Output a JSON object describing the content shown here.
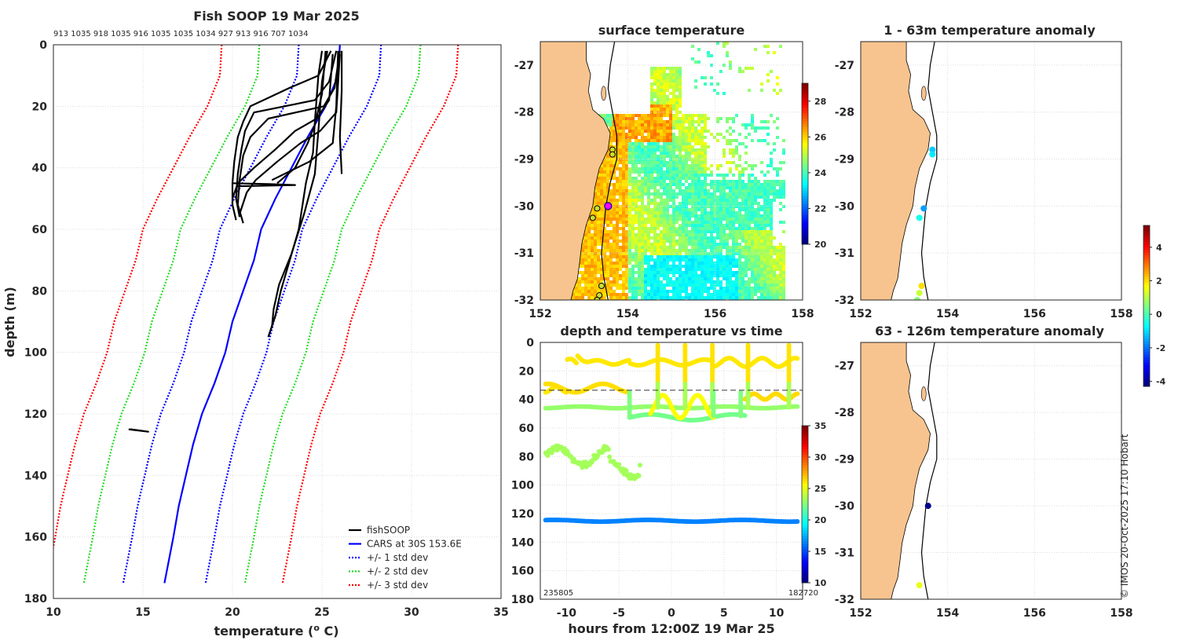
{
  "colors": {
    "coast_fill": "#f7c48f",
    "cars": "#0000ff",
    "sd1": "#0000ff",
    "sd2": "#22dd22",
    "sd3": "#ff0000",
    "fish": "#000000"
  },
  "copyright": "© IMOS 20-Oct-2025 17:10 Hobart",
  "colorbars": {
    "sst": {
      "min": 20,
      "max": 29,
      "ticks": [
        "20",
        "22",
        "24",
        "26",
        "28"
      ]
    },
    "depth_time": {
      "min": 10,
      "max": 35,
      "ticks": [
        "10",
        "15",
        "20",
        "25",
        "30",
        "35"
      ]
    },
    "anomaly": {
      "min": -4.3,
      "max": 5.3,
      "ticks": [
        "-4",
        "-2",
        "0",
        "2",
        "4"
      ]
    }
  },
  "chart_data": [
    {
      "id": "profile",
      "type": "line",
      "title": "Fish SOOP 19 Mar 2025",
      "top_labels": "913 1035 918 1035 916 1035 1035 1034 927 913 916 707 1034",
      "xlabel": "temperature (° C)",
      "ylabel": "depth (m)",
      "xlim": [
        10,
        35
      ],
      "ylim": [
        0,
        180
      ],
      "xticks": [
        "10",
        "15",
        "20",
        "25",
        "30",
        "35"
      ],
      "yticks": [
        "0",
        "20",
        "40",
        "60",
        "80",
        "100",
        "120",
        "140",
        "160",
        "180"
      ],
      "legend": [
        "fishSOOP",
        "CARS at 30S 153.6E",
        "+/- 1 std dev",
        "+/- 2 std dev",
        "+/- 3 std dev"
      ],
      "cars": {
        "depth": [
          0,
          10,
          20,
          30,
          40,
          50,
          60,
          70,
          80,
          90,
          100,
          110,
          120,
          130,
          140,
          150,
          160,
          175
        ],
        "temp": [
          26.0,
          25.9,
          25.2,
          24.2,
          23.3,
          22.4,
          21.6,
          21.2,
          20.6,
          20.0,
          19.6,
          19.0,
          18.3,
          17.8,
          17.4,
          17.0,
          16.7,
          16.2
        ]
      },
      "sd_offsets": [
        2.3,
        4.5,
        6.6
      ],
      "fish_profiles": [
        {
          "depth": [
            2,
            10,
            14,
            20,
            25,
            30,
            38,
            45,
            52,
            57
          ],
          "temp": [
            25.5,
            24.8,
            23.2,
            21.0,
            20.6,
            20.3,
            20.1,
            20.0,
            20.0,
            20.2
          ]
        },
        {
          "depth": [
            2,
            12,
            18,
            22,
            28,
            34,
            42,
            50,
            56
          ],
          "temp": [
            25.8,
            25.4,
            24.6,
            21.2,
            20.7,
            20.5,
            20.3,
            20.2,
            20.4
          ]
        },
        {
          "depth": [
            2,
            14,
            20,
            24,
            30,
            36,
            44,
            52,
            58
          ],
          "temp": [
            26.0,
            25.7,
            25.1,
            22.0,
            21.0,
            20.6,
            20.4,
            20.3,
            20.6
          ]
        },
        {
          "depth": [
            3,
            18,
            24,
            28,
            34,
            40,
            45,
            50
          ],
          "temp": [
            25.6,
            25.4,
            24.7,
            23.5,
            22.4,
            21.2,
            20.3,
            20.0
          ]
        },
        {
          "depth": [
            3,
            22,
            28,
            32,
            38,
            44,
            48,
            55
          ],
          "temp": [
            26.0,
            25.8,
            24.9,
            23.8,
            22.5,
            21.3,
            20.8,
            20.4
          ]
        },
        {
          "depth": [
            2,
            16,
            26,
            32,
            40,
            45
          ],
          "temp": [
            25.2,
            25.0,
            24.6,
            24.2,
            23.5,
            22.5
          ]
        },
        {
          "depth": [
            45,
            45.3,
            45.6,
            46
          ],
          "temp": [
            20.0,
            22.0,
            23.5,
            20.2
          ]
        },
        {
          "depth": [
            2,
            20,
            32,
            38,
            44
          ],
          "temp": [
            25.9,
            25.8,
            25.6,
            24.3,
            22.2
          ]
        },
        {
          "depth": [
            2,
            10,
            25,
            35,
            45,
            60,
            70,
            80,
            88,
            95
          ],
          "temp": [
            25.0,
            24.8,
            24.6,
            24.5,
            24.1,
            23.7,
            23.2,
            22.7,
            22.4,
            22.0
          ]
        },
        {
          "depth": [
            2,
            12,
            28,
            42,
            55,
            68,
            78,
            86,
            92
          ],
          "temp": [
            25.3,
            25.0,
            24.8,
            24.6,
            24.0,
            23.3,
            22.6,
            22.3,
            22.2
          ]
        },
        {
          "depth": [
            2,
            15,
            30,
            42
          ],
          "temp": [
            26.1,
            26.1,
            26.0,
            26.1
          ]
        },
        {
          "depth": [
            125,
            125.4,
            125.8,
            125.3,
            125.0
          ],
          "temp": [
            14.3,
            14.8,
            15.3,
            14.6,
            14.2
          ]
        }
      ]
    },
    {
      "id": "sst_map",
      "type": "heatmap",
      "title": "surface temperature",
      "xlim": [
        152,
        158
      ],
      "ylim": [
        -32,
        -26.5
      ],
      "xticks": [
        "152",
        "154",
        "156",
        "158"
      ],
      "yticks": [
        "-27",
        "-28",
        "-29",
        "-30",
        "-31",
        "-32"
      ],
      "stations": [
        [
          153.65,
          -28.8
        ],
        [
          153.65,
          -28.9
        ],
        [
          153.3,
          -30.05
        ],
        [
          153.2,
          -30.25
        ],
        [
          153.4,
          -31.7
        ],
        [
          153.35,
          -31.9
        ],
        [
          153.3,
          -32.0
        ]
      ],
      "highlight": [
        153.55,
        -30.0
      ]
    },
    {
      "id": "depth_time",
      "type": "scatter",
      "title": "depth and temperature vs time",
      "xlabel": "hours from 12:00Z 19 Mar 25",
      "xlim": [
        -12.5,
        12.5
      ],
      "ylim": [
        0,
        180
      ],
      "xticks": [
        "-10",
        "-5",
        "0",
        "5",
        "10"
      ],
      "yticks": [
        "0",
        "20",
        "40",
        "60",
        "80",
        "100",
        "120",
        "140",
        "160",
        "180"
      ],
      "dashed_depth": 33.5,
      "corner_left": "235805",
      "corner_right": "182720"
    },
    {
      "id": "anom_upper",
      "type": "scatter",
      "title": "1 - 63m temperature anomaly",
      "xlim": [
        152,
        158
      ],
      "ylim": [
        -32,
        -26.5
      ],
      "xticks": [
        "152",
        "154",
        "156",
        "158"
      ],
      "yticks": [
        "-27",
        "-28",
        "-29",
        "-30",
        "-31",
        "-32"
      ],
      "points": [
        [
          153.65,
          -28.8,
          -1.2
        ],
        [
          153.65,
          -28.9,
          -0.9
        ],
        [
          153.45,
          -30.05,
          -1.6
        ],
        [
          153.35,
          -30.25,
          -0.5
        ],
        [
          153.4,
          -31.7,
          2.0
        ],
        [
          153.35,
          -31.85,
          1.2
        ],
        [
          153.3,
          -32.0,
          0.6
        ]
      ]
    },
    {
      "id": "anom_lower",
      "type": "scatter",
      "title": "63 - 126m temperature anomaly",
      "xlim": [
        152,
        158
      ],
      "ylim": [
        -32,
        -26.5
      ],
      "xticks": [
        "152",
        "154",
        "156",
        "158"
      ],
      "yticks": [
        "-27",
        "-28",
        "-29",
        "-30",
        "-31",
        "-32"
      ],
      "points": [
        [
          153.55,
          -30.0,
          -4.2
        ],
        [
          153.35,
          -31.7,
          1.5
        ]
      ]
    }
  ]
}
